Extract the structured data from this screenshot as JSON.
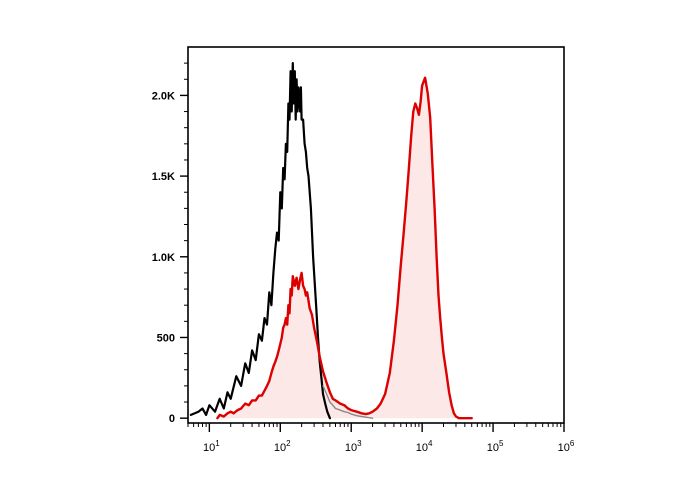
{
  "chart_data": {
    "type": "area",
    "title": "",
    "xlabel": "",
    "ylabel": "",
    "x_scale": "log",
    "xlim": [
      5,
      1000000
    ],
    "ylim": [
      -30,
      2300
    ],
    "x_ticks": [
      {
        "base": "10",
        "exp": "1",
        "value": 10
      },
      {
        "base": "10",
        "exp": "2",
        "value": 100
      },
      {
        "base": "10",
        "exp": "3",
        "value": 1000
      },
      {
        "base": "10",
        "exp": "4",
        "value": 10000
      },
      {
        "base": "10",
        "exp": "5",
        "value": 100000
      },
      {
        "base": "10",
        "exp": "6",
        "value": 1000000
      }
    ],
    "y_ticks": [
      {
        "label": "0",
        "value": 0
      },
      {
        "label": "500",
        "value": 500
      },
      {
        "label": "1.0K",
        "value": 1000
      },
      {
        "label": "1.5K",
        "value": 1500
      },
      {
        "label": "2.0K",
        "value": 2000
      }
    ],
    "grid": false,
    "legend": "none",
    "series": [
      {
        "color": "#000000",
        "fill": "none",
        "stroke_width": 2.2,
        "x": [
          5.5,
          7,
          8,
          9,
          10,
          12,
          14,
          16,
          18,
          20,
          24,
          28,
          32,
          36,
          40,
          45,
          50,
          55,
          60,
          65,
          70,
          75,
          80,
          85,
          90,
          95,
          100,
          105,
          110,
          115,
          120,
          125,
          130,
          135,
          140,
          145,
          150,
          155,
          160,
          165,
          170,
          175,
          180,
          185,
          190,
          195,
          200,
          210,
          220,
          230,
          240,
          250,
          260,
          270,
          280,
          290,
          300,
          320,
          340,
          360,
          380,
          400,
          430,
          460,
          500
        ],
        "y": [
          20,
          40,
          60,
          20,
          80,
          40,
          120,
          60,
          160,
          120,
          260,
          200,
          340,
          280,
          420,
          360,
          520,
          480,
          620,
          580,
          780,
          700,
          900,
          1050,
          1150,
          1100,
          1400,
          1300,
          1550,
          1480,
          1700,
          1650,
          1950,
          1850,
          2150,
          1900,
          2200,
          1950,
          2150,
          1850,
          2100,
          1900,
          2050,
          2000,
          1900,
          2050,
          1850,
          1850,
          1700,
          1650,
          1550,
          1500,
          1400,
          1300,
          1150,
          1000,
          900,
          700,
          500,
          350,
          250,
          150,
          90,
          40,
          0
        ]
      },
      {
        "color": "#888888",
        "fill": "none",
        "stroke_width": 1.4,
        "x": [
          400,
          450,
          500,
          550,
          600,
          700,
          800,
          900,
          1000,
          1200,
          1400,
          1700,
          2000
        ],
        "y": [
          200,
          150,
          100,
          80,
          60,
          50,
          40,
          35,
          25,
          15,
          10,
          5,
          0
        ]
      },
      {
        "color": "#dd0000",
        "fill": "#fde8e8",
        "stroke_width": 2.4,
        "x": [
          13,
          14,
          16,
          18,
          20,
          22,
          25,
          28,
          32,
          36,
          40,
          45,
          50,
          55,
          60,
          65,
          70,
          75,
          80,
          85,
          90,
          95,
          100,
          105,
          110,
          115,
          120,
          125,
          130,
          135,
          140,
          145,
          150,
          160,
          170,
          180,
          190,
          200,
          210,
          220,
          230,
          240,
          260,
          280,
          300,
          330,
          360,
          400,
          450,
          500,
          550,
          600,
          700,
          800,
          900,
          1000,
          1200,
          1400,
          1600,
          1800,
          2000,
          2300,
          2600,
          3000,
          3500,
          4000,
          4500,
          5000,
          5500,
          6000,
          6500,
          7000,
          7500,
          8000,
          8500,
          9000,
          9500,
          10000,
          11000,
          12000,
          13000,
          14000,
          15000,
          16000,
          17000,
          18000,
          19000,
          20000,
          22000,
          24000,
          26000,
          28000,
          30000,
          33000,
          36000,
          40000,
          45000,
          50000
        ],
        "y": [
          0,
          20,
          10,
          30,
          40,
          30,
          50,
          60,
          90,
          80,
          110,
          110,
          140,
          140,
          170,
          200,
          230,
          280,
          320,
          350,
          380,
          420,
          460,
          500,
          560,
          580,
          620,
          580,
          700,
          650,
          800,
          760,
          880,
          820,
          870,
          800,
          860,
          900,
          820,
          800,
          760,
          780,
          680,
          640,
          560,
          470,
          380,
          290,
          220,
          160,
          120,
          110,
          90,
          80,
          60,
          50,
          40,
          30,
          25,
          30,
          40,
          60,
          90,
          150,
          280,
          480,
          700,
          950,
          1150,
          1350,
          1550,
          1750,
          1900,
          1950,
          1920,
          1880,
          1960,
          2060,
          2110,
          2010,
          1860,
          1560,
          1300,
          1000,
          760,
          620,
          500,
          400,
          280,
          160,
          80,
          30,
          10,
          0,
          0,
          0,
          0,
          0
        ]
      }
    ]
  }
}
